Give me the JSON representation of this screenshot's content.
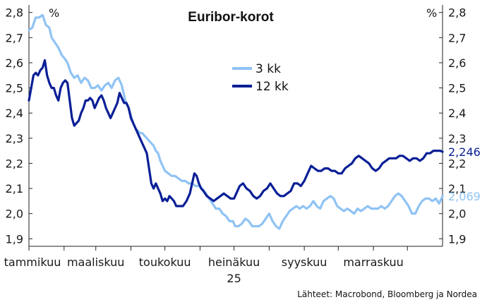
{
  "chart_data": {
    "type": "line",
    "title": "Euribor-korot",
    "y_unit_left": "%",
    "y_unit_right": "%",
    "ylim": [
      1.87,
      2.83
    ],
    "yticks": [
      1.9,
      2.0,
      2.1,
      2.2,
      2.3,
      2.4,
      2.5,
      2.6,
      2.7,
      2.8
    ],
    "ytick_labels": [
      "1,9",
      "2,0",
      "2,1",
      "2,2",
      "2,3",
      "2,4",
      "2,5",
      "2,6",
      "2,7",
      "2,8"
    ],
    "xlim": [
      0,
      365
    ],
    "x_tick_positions": [
      0,
      31,
      59,
      90,
      120,
      151,
      181,
      212,
      243,
      273,
      304,
      334
    ],
    "x_labels": [
      {
        "label": "tammikuu",
        "pos": 0
      },
      {
        "label": "maaliskuu",
        "pos": 59
      },
      {
        "label": "toukokuu",
        "pos": 120
      },
      {
        "label": "heinäkuu",
        "pos": 181
      },
      {
        "label": "syyskuu",
        "pos": 243
      },
      {
        "label": "marraskuu",
        "pos": 304
      }
    ],
    "x_year_label": "25",
    "legend": {
      "placement": "upper-center"
    },
    "grid": false,
    "series": [
      {
        "name": "3 kk",
        "color": "#8fc3f4",
        "end_label": "2,069",
        "points": [
          [
            0,
            2.73
          ],
          [
            3,
            2.74
          ],
          [
            6,
            2.78
          ],
          [
            9,
            2.78
          ],
          [
            12,
            2.79
          ],
          [
            15,
            2.75
          ],
          [
            18,
            2.74
          ],
          [
            20,
            2.7
          ],
          [
            23,
            2.68
          ],
          [
            26,
            2.66
          ],
          [
            29,
            2.63
          ],
          [
            31,
            2.62
          ],
          [
            34,
            2.6
          ],
          [
            37,
            2.56
          ],
          [
            40,
            2.54
          ],
          [
            43,
            2.55
          ],
          [
            46,
            2.52
          ],
          [
            49,
            2.54
          ],
          [
            52,
            2.53
          ],
          [
            55,
            2.5
          ],
          [
            58,
            2.5
          ],
          [
            61,
            2.51
          ],
          [
            64,
            2.49
          ],
          [
            67,
            2.51
          ],
          [
            70,
            2.52
          ],
          [
            73,
            2.5
          ],
          [
            76,
            2.53
          ],
          [
            79,
            2.54
          ],
          [
            82,
            2.51
          ],
          [
            85,
            2.45
          ],
          [
            88,
            2.42
          ],
          [
            90,
            2.39
          ],
          [
            92,
            2.36
          ],
          [
            94,
            2.34
          ],
          [
            96,
            2.33
          ],
          [
            98,
            2.32
          ],
          [
            100,
            2.32
          ],
          [
            102,
            2.31
          ],
          [
            104,
            2.3
          ],
          [
            106,
            2.29
          ],
          [
            108,
            2.28
          ],
          [
            110,
            2.27
          ],
          [
            112,
            2.25
          ],
          [
            114,
            2.24
          ],
          [
            116,
            2.21
          ],
          [
            118,
            2.19
          ],
          [
            120,
            2.17
          ],
          [
            123,
            2.16
          ],
          [
            126,
            2.15
          ],
          [
            129,
            2.15
          ],
          [
            132,
            2.14
          ],
          [
            135,
            2.13
          ],
          [
            138,
            2.13
          ],
          [
            141,
            2.12
          ],
          [
            144,
            2.12
          ],
          [
            147,
            2.11
          ],
          [
            150,
            2.11
          ],
          [
            153,
            2.1
          ],
          [
            156,
            2.08
          ],
          [
            159,
            2.06
          ],
          [
            162,
            2.04
          ],
          [
            165,
            2.02
          ],
          [
            168,
            2.02
          ],
          [
            171,
            2.0
          ],
          [
            174,
            1.99
          ],
          [
            177,
            1.97
          ],
          [
            180,
            1.97
          ],
          [
            182,
            1.95
          ],
          [
            185,
            1.95
          ],
          [
            188,
            1.96
          ],
          [
            191,
            1.98
          ],
          [
            194,
            1.97
          ],
          [
            197,
            1.95
          ],
          [
            200,
            1.95
          ],
          [
            203,
            1.95
          ],
          [
            206,
            1.96
          ],
          [
            209,
            1.98
          ],
          [
            212,
            2.0
          ],
          [
            215,
            1.97
          ],
          [
            218,
            1.95
          ],
          [
            221,
            1.94
          ],
          [
            224,
            1.97
          ],
          [
            227,
            1.99
          ],
          [
            230,
            2.01
          ],
          [
            233,
            2.02
          ],
          [
            236,
            2.03
          ],
          [
            239,
            2.02
          ],
          [
            242,
            2.03
          ],
          [
            245,
            2.02
          ],
          [
            248,
            2.03
          ],
          [
            251,
            2.05
          ],
          [
            254,
            2.03
          ],
          [
            257,
            2.02
          ],
          [
            260,
            2.05
          ],
          [
            263,
            2.06
          ],
          [
            266,
            2.07
          ],
          [
            269,
            2.06
          ],
          [
            272,
            2.03
          ],
          [
            275,
            2.02
          ],
          [
            278,
            2.01
          ],
          [
            281,
            2.02
          ],
          [
            284,
            2.01
          ],
          [
            287,
            2.0
          ],
          [
            290,
            2.02
          ],
          [
            293,
            2.01
          ],
          [
            296,
            2.02
          ],
          [
            299,
            2.03
          ],
          [
            302,
            2.02
          ],
          [
            305,
            2.02
          ],
          [
            308,
            2.02
          ],
          [
            311,
            2.03
          ],
          [
            314,
            2.02
          ],
          [
            317,
            2.03
          ],
          [
            320,
            2.05
          ],
          [
            323,
            2.07
          ],
          [
            326,
            2.08
          ],
          [
            329,
            2.07
          ],
          [
            332,
            2.05
          ],
          [
            335,
            2.03
          ],
          [
            338,
            2.0
          ],
          [
            341,
            2.0
          ],
          [
            344,
            2.03
          ],
          [
            347,
            2.05
          ],
          [
            350,
            2.06
          ],
          [
            353,
            2.06
          ],
          [
            356,
            2.05
          ],
          [
            359,
            2.06
          ],
          [
            362,
            2.04
          ],
          [
            365,
            2.069
          ]
        ]
      },
      {
        "name": "12 kk",
        "color": "#0a1f96",
        "end_label": "2,246",
        "points": [
          [
            0,
            2.45
          ],
          [
            2,
            2.5
          ],
          [
            4,
            2.55
          ],
          [
            6,
            2.56
          ],
          [
            8,
            2.55
          ],
          [
            10,
            2.57
          ],
          [
            12,
            2.58
          ],
          [
            14,
            2.61
          ],
          [
            16,
            2.55
          ],
          [
            18,
            2.52
          ],
          [
            20,
            2.5
          ],
          [
            22,
            2.5
          ],
          [
            24,
            2.47
          ],
          [
            26,
            2.45
          ],
          [
            28,
            2.5
          ],
          [
            30,
            2.52
          ],
          [
            32,
            2.53
          ],
          [
            34,
            2.52
          ],
          [
            36,
            2.45
          ],
          [
            38,
            2.38
          ],
          [
            40,
            2.35
          ],
          [
            42,
            2.36
          ],
          [
            44,
            2.37
          ],
          [
            46,
            2.4
          ],
          [
            48,
            2.42
          ],
          [
            50,
            2.45
          ],
          [
            52,
            2.45
          ],
          [
            54,
            2.46
          ],
          [
            56,
            2.45
          ],
          [
            58,
            2.42
          ],
          [
            60,
            2.44
          ],
          [
            62,
            2.46
          ],
          [
            64,
            2.47
          ],
          [
            66,
            2.45
          ],
          [
            68,
            2.42
          ],
          [
            70,
            2.4
          ],
          [
            72,
            2.38
          ],
          [
            74,
            2.4
          ],
          [
            76,
            2.42
          ],
          [
            78,
            2.44
          ],
          [
            80,
            2.48
          ],
          [
            82,
            2.46
          ],
          [
            84,
            2.44
          ],
          [
            86,
            2.44
          ],
          [
            88,
            2.42
          ],
          [
            90,
            2.38
          ],
          [
            92,
            2.36
          ],
          [
            94,
            2.34
          ],
          [
            96,
            2.32
          ],
          [
            98,
            2.3
          ],
          [
            100,
            2.28
          ],
          [
            102,
            2.26
          ],
          [
            104,
            2.24
          ],
          [
            106,
            2.18
          ],
          [
            108,
            2.12
          ],
          [
            110,
            2.1
          ],
          [
            112,
            2.12
          ],
          [
            114,
            2.1
          ],
          [
            116,
            2.08
          ],
          [
            118,
            2.05
          ],
          [
            120,
            2.06
          ],
          [
            122,
            2.05
          ],
          [
            124,
            2.07
          ],
          [
            126,
            2.06
          ],
          [
            128,
            2.05
          ],
          [
            130,
            2.03
          ],
          [
            133,
            2.03
          ],
          [
            136,
            2.03
          ],
          [
            139,
            2.05
          ],
          [
            142,
            2.08
          ],
          [
            144,
            2.12
          ],
          [
            146,
            2.16
          ],
          [
            148,
            2.15
          ],
          [
            150,
            2.12
          ],
          [
            152,
            2.1
          ],
          [
            154,
            2.09
          ],
          [
            157,
            2.07
          ],
          [
            160,
            2.06
          ],
          [
            163,
            2.05
          ],
          [
            166,
            2.06
          ],
          [
            169,
            2.07
          ],
          [
            172,
            2.08
          ],
          [
            175,
            2.07
          ],
          [
            178,
            2.06
          ],
          [
            181,
            2.06
          ],
          [
            183,
            2.08
          ],
          [
            186,
            2.11
          ],
          [
            189,
            2.12
          ],
          [
            192,
            2.1
          ],
          [
            195,
            2.09
          ],
          [
            198,
            2.07
          ],
          [
            201,
            2.06
          ],
          [
            204,
            2.07
          ],
          [
            207,
            2.09
          ],
          [
            210,
            2.1
          ],
          [
            213,
            2.12
          ],
          [
            216,
            2.1
          ],
          [
            219,
            2.08
          ],
          [
            222,
            2.07
          ],
          [
            225,
            2.07
          ],
          [
            228,
            2.08
          ],
          [
            231,
            2.09
          ],
          [
            234,
            2.12
          ],
          [
            237,
            2.12
          ],
          [
            240,
            2.11
          ],
          [
            243,
            2.13
          ],
          [
            246,
            2.16
          ],
          [
            249,
            2.19
          ],
          [
            252,
            2.18
          ],
          [
            255,
            2.17
          ],
          [
            258,
            2.17
          ],
          [
            261,
            2.18
          ],
          [
            264,
            2.18
          ],
          [
            267,
            2.17
          ],
          [
            270,
            2.17
          ],
          [
            273,
            2.16
          ],
          [
            276,
            2.16
          ],
          [
            279,
            2.18
          ],
          [
            282,
            2.19
          ],
          [
            285,
            2.2
          ],
          [
            288,
            2.22
          ],
          [
            291,
            2.23
          ],
          [
            294,
            2.22
          ],
          [
            297,
            2.21
          ],
          [
            300,
            2.2
          ],
          [
            303,
            2.18
          ],
          [
            306,
            2.17
          ],
          [
            309,
            2.18
          ],
          [
            312,
            2.2
          ],
          [
            315,
            2.21
          ],
          [
            318,
            2.22
          ],
          [
            321,
            2.22
          ],
          [
            324,
            2.22
          ],
          [
            327,
            2.23
          ],
          [
            330,
            2.23
          ],
          [
            333,
            2.22
          ],
          [
            336,
            2.21
          ],
          [
            339,
            2.22
          ],
          [
            342,
            2.22
          ],
          [
            345,
            2.21
          ],
          [
            348,
            2.22
          ],
          [
            351,
            2.24
          ],
          [
            354,
            2.24
          ],
          [
            357,
            2.25
          ],
          [
            360,
            2.25
          ],
          [
            363,
            2.25
          ],
          [
            365,
            2.246
          ]
        ]
      }
    ]
  },
  "source_note": "Lähteet: Macrobond, Bloomberg ja Nordea"
}
